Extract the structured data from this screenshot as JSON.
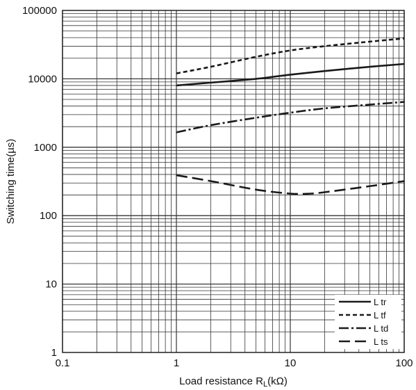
{
  "chart_data": {
    "type": "line",
    "xlabel": "Load resistance R",
    "xlabel_sub": "L",
    "xlabel_unit": "(kΩ)",
    "ylabel": "Switching time(µs)",
    "xscale": "log",
    "yscale": "log",
    "xlim": [
      0.1,
      100
    ],
    "ylim": [
      1,
      100000
    ],
    "x_ticks": [
      "0.1",
      "1",
      "10",
      "100"
    ],
    "y_ticks": [
      "1",
      "10",
      "100",
      "1000",
      "10000",
      "100000"
    ],
    "grid": true,
    "legend_position": "bottom-right",
    "series": [
      {
        "name": "L tr",
        "style": "solid",
        "x": [
          1,
          2,
          5,
          10,
          20,
          50,
          100
        ],
        "y": [
          8000,
          8800,
          10000,
          11500,
          13000,
          15000,
          16500
        ]
      },
      {
        "name": "L tf",
        "style": "dashed-short",
        "x": [
          1,
          2,
          5,
          10,
          20,
          50,
          100
        ],
        "y": [
          12000,
          15000,
          21000,
          26000,
          30000,
          35000,
          39000
        ]
      },
      {
        "name": "L td",
        "style": "dash-dot",
        "x": [
          1,
          2,
          5,
          10,
          20,
          50,
          100
        ],
        "y": [
          1650,
          2100,
          2700,
          3200,
          3700,
          4200,
          4600
        ]
      },
      {
        "name": "L ts",
        "style": "dashed-long",
        "x": [
          1,
          2,
          5,
          10,
          15,
          20,
          50,
          100
        ],
        "y": [
          390,
          320,
          240,
          210,
          210,
          220,
          270,
          320
        ]
      }
    ]
  }
}
